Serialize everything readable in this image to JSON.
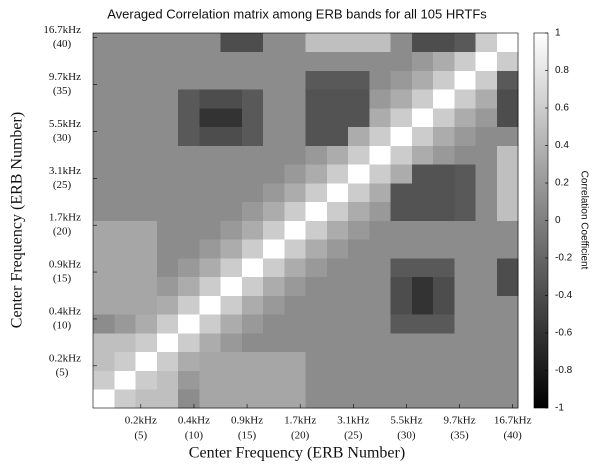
{
  "chart_data": {
    "type": "heatmap",
    "title": "Averaged Correlation matrix among ERB bands for all 105 HRTFs",
    "xlabel": "Center Frequency (ERB Number)",
    "ylabel": "Center Frequency (ERB Number)",
    "colorbar_label": "Correlation Coefficient",
    "colormap": "gray",
    "x": [
      1.5,
      3.5,
      5.5,
      7.5,
      9.5,
      11.5,
      13.5,
      15.5,
      17.5,
      19.5,
      21.5,
      23.5,
      25.5,
      27.5,
      29.5,
      31.5,
      33.5,
      35.5,
      37.5,
      39.5
    ],
    "y": [
      1.5,
      3.5,
      5.5,
      7.5,
      9.5,
      11.5,
      13.5,
      15.5,
      17.5,
      19.5,
      21.5,
      23.5,
      25.5,
      27.5,
      29.5,
      31.5,
      33.5,
      35.5,
      37.5,
      39.5
    ],
    "xlim": [
      0.5,
      40.5
    ],
    "ylim": [
      0.5,
      40.5
    ],
    "xticks": [
      {
        "value": 5,
        "label": "0.2kHz",
        "sublabel": "(5)"
      },
      {
        "value": 10,
        "label": "0.4kHz",
        "sublabel": "(10)"
      },
      {
        "value": 15,
        "label": "0.9kHz",
        "sublabel": "(15)"
      },
      {
        "value": 20,
        "label": "1.7kHz",
        "sublabel": "(20)"
      },
      {
        "value": 25,
        "label": "3.1kHz",
        "sublabel": "(25)"
      },
      {
        "value": 30,
        "label": "5.5kHz",
        "sublabel": "(30)"
      },
      {
        "value": 35,
        "label": "9.7kHz",
        "sublabel": "(35)"
      },
      {
        "value": 40,
        "label": "16.7kHz",
        "sublabel": "(40)"
      }
    ],
    "yticks": [
      {
        "value": 5,
        "label": "0.2kHz",
        "sublabel": "(5)"
      },
      {
        "value": 10,
        "label": "0.4kHz",
        "sublabel": "(10)"
      },
      {
        "value": 15,
        "label": "0.9kHz",
        "sublabel": "(15)"
      },
      {
        "value": 20,
        "label": "1.7kHz",
        "sublabel": "(20)"
      },
      {
        "value": 25,
        "label": "3.1kHz",
        "sublabel": "(25)"
      },
      {
        "value": 30,
        "label": "5.5kHz",
        "sublabel": "(30)"
      },
      {
        "value": 35,
        "label": "9.7kHz",
        "sublabel": "(35)"
      },
      {
        "value": 40,
        "label": "16.7kHz",
        "sublabel": "(40)"
      }
    ],
    "clim": [
      -1,
      1
    ],
    "cticks": [
      -1,
      -0.8,
      -0.6,
      -0.4,
      -0.2,
      0,
      0.2,
      0.4,
      0.6,
      0.8,
      1
    ],
    "values": [
      [
        1,
        0.6,
        0.5,
        0.5,
        0.1,
        0.3,
        0.3,
        0.3,
        0.3,
        0.3,
        0.1,
        0.1,
        0.1,
        0.1,
        0.1,
        0.1,
        0.1,
        0.1,
        0.1,
        0.1
      ],
      [
        0.6,
        1,
        0.6,
        0.5,
        0.2,
        0.3,
        0.3,
        0.3,
        0.3,
        0.3,
        0.1,
        0.1,
        0.1,
        0.1,
        0.1,
        0.1,
        0.1,
        0.1,
        0.1,
        0.1
      ],
      [
        0.5,
        0.6,
        1,
        0.6,
        0.35,
        0.3,
        0.3,
        0.3,
        0.3,
        0.3,
        0.1,
        0.1,
        0.1,
        0.1,
        0.1,
        0.1,
        0.1,
        0.1,
        0.1,
        0.1
      ],
      [
        0.5,
        0.5,
        0.6,
        1,
        0.6,
        0.35,
        0.2,
        0.1,
        0.1,
        0.1,
        0.1,
        0.1,
        0.1,
        0.1,
        0.1,
        0.1,
        0.1,
        0.1,
        0.1,
        0.1
      ],
      [
        0.1,
        0.2,
        0.35,
        0.6,
        1,
        0.6,
        0.35,
        0.2,
        0.1,
        0.1,
        0.1,
        0.1,
        0.1,
        0.1,
        -0.3,
        -0.3,
        -0.3,
        0.1,
        0.1,
        0.1
      ],
      [
        0.3,
        0.3,
        0.3,
        0.35,
        0.6,
        1,
        0.6,
        0.35,
        0.2,
        0.1,
        0.1,
        0.1,
        0.1,
        0.1,
        -0.4,
        -0.6,
        -0.4,
        0.1,
        0.1,
        0.1
      ],
      [
        0.3,
        0.3,
        0.3,
        0.2,
        0.35,
        0.6,
        1,
        0.6,
        0.35,
        0.2,
        0.1,
        0.1,
        0.1,
        0.1,
        -0.4,
        -0.6,
        -0.4,
        0.1,
        0.1,
        -0.4
      ],
      [
        0.3,
        0.3,
        0.3,
        0.1,
        0.2,
        0.35,
        0.6,
        1,
        0.6,
        0.35,
        0.2,
        0.1,
        0.1,
        0.1,
        -0.3,
        -0.3,
        -0.3,
        0.1,
        0.1,
        -0.4
      ],
      [
        0.3,
        0.3,
        0.3,
        0.1,
        0.1,
        0.2,
        0.35,
        0.6,
        1,
        0.6,
        0.35,
        0.2,
        0.1,
        0.1,
        0.1,
        0.1,
        0.1,
        0.1,
        0.1,
        0.1
      ],
      [
        0.3,
        0.3,
        0.3,
        0.1,
        0.1,
        0.1,
        0.2,
        0.35,
        0.6,
        1,
        0.6,
        0.35,
        0.2,
        0.1,
        0.1,
        0.1,
        0.1,
        0.1,
        0.1,
        0.1
      ],
      [
        0.1,
        0.1,
        0.1,
        0.1,
        0.1,
        0.1,
        0.1,
        0.2,
        0.35,
        0.6,
        1,
        0.6,
        0.35,
        0.2,
        -0.35,
        -0.35,
        -0.35,
        -0.3,
        0.1,
        0.5
      ],
      [
        0.1,
        0.1,
        0.1,
        0.1,
        0.1,
        0.1,
        0.1,
        0.1,
        0.2,
        0.35,
        0.6,
        1,
        0.6,
        0.35,
        -0.35,
        -0.35,
        -0.35,
        -0.3,
        0.1,
        0.5
      ],
      [
        0.1,
        0.1,
        0.1,
        0.1,
        0.1,
        0.1,
        0.1,
        0.1,
        0.1,
        0.2,
        0.35,
        0.6,
        1,
        0.6,
        0.35,
        -0.35,
        -0.35,
        -0.3,
        0.1,
        0.5
      ],
      [
        0.1,
        0.1,
        0.1,
        0.1,
        0.1,
        0.1,
        0.1,
        0.1,
        0.1,
        0.1,
        0.2,
        0.35,
        0.6,
        1,
        0.6,
        0.35,
        0.2,
        0.1,
        0.1,
        0.5
      ],
      [
        0.1,
        0.1,
        0.1,
        0.1,
        -0.3,
        -0.4,
        -0.4,
        -0.3,
        0.1,
        0.1,
        -0.35,
        -0.35,
        0.35,
        0.6,
        1,
        0.6,
        0.35,
        0.2,
        0.1,
        0.1
      ],
      [
        0.1,
        0.1,
        0.1,
        0.1,
        -0.3,
        -0.6,
        -0.6,
        -0.3,
        0.1,
        0.1,
        -0.35,
        -0.35,
        -0.35,
        0.35,
        0.6,
        1,
        0.6,
        0.35,
        0.2,
        -0.4
      ],
      [
        0.1,
        0.1,
        0.1,
        0.1,
        -0.3,
        -0.4,
        -0.4,
        -0.3,
        0.1,
        0.1,
        -0.35,
        -0.35,
        -0.35,
        0.2,
        0.35,
        0.6,
        1,
        0.6,
        0.35,
        -0.4
      ],
      [
        0.1,
        0.1,
        0.1,
        0.1,
        0.1,
        0.1,
        0.1,
        0.1,
        0.1,
        0.1,
        -0.3,
        -0.3,
        -0.3,
        0.1,
        0.2,
        0.35,
        0.6,
        1,
        0.6,
        -0.3
      ],
      [
        0.1,
        0.1,
        0.1,
        0.1,
        0.1,
        0.1,
        0.1,
        0.1,
        0.1,
        0.1,
        0.1,
        0.1,
        0.1,
        0.1,
        0.1,
        0.2,
        0.35,
        0.6,
        1,
        0.6
      ],
      [
        0.1,
        0.1,
        0.1,
        0.1,
        0.1,
        0.1,
        -0.4,
        -0.4,
        0.1,
        0.1,
        0.5,
        0.5,
        0.5,
        0.5,
        0.1,
        -0.4,
        -0.4,
        -0.3,
        0.6,
        1
      ]
    ]
  }
}
